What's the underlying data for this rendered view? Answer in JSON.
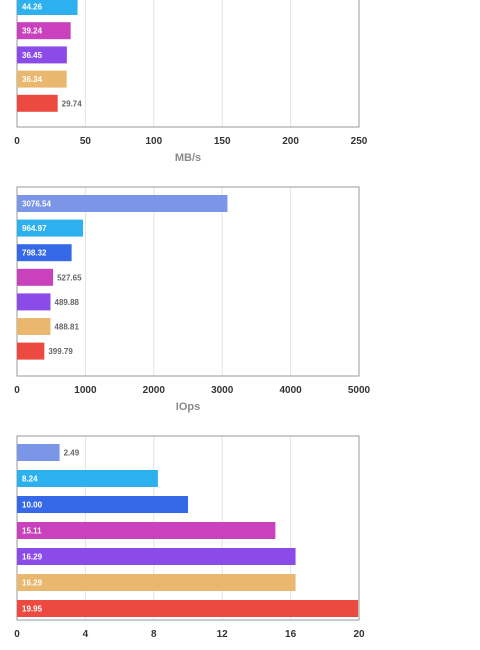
{
  "colors": [
    "#7b96e6",
    "#2db1ee",
    "#3569e8",
    "#c941bd",
    "#8a4be8",
    "#e9b86e",
    "#ec4a41"
  ],
  "chart_data": [
    {
      "type": "bar",
      "orientation": "horizontal",
      "title": "",
      "xlabel": "MB/s",
      "ylabel": "",
      "xlim": [
        0,
        250
      ],
      "xticks": [
        0,
        50,
        100,
        150,
        200,
        250
      ],
      "grid": true,
      "values": [
        44.26,
        39.24,
        36.45,
        36.34,
        29.74
      ],
      "labels": [
        "44.26",
        "39.24",
        "36.45",
        "36.34",
        "29.74"
      ],
      "colors": [
        "#2db1ee",
        "#c941bd",
        "#8a4be8",
        "#e9b86e",
        "#ec4a41"
      ]
    },
    {
      "type": "bar",
      "orientation": "horizontal",
      "title": "",
      "xlabel": "IOps",
      "ylabel": "",
      "xlim": [
        0,
        5000
      ],
      "xticks": [
        0,
        1000,
        2000,
        3000,
        4000,
        5000
      ],
      "grid": true,
      "values": [
        3076.54,
        964.97,
        798.32,
        527.65,
        489.88,
        488.81,
        399.79
      ],
      "labels": [
        "3076.54",
        "964.97",
        "798.32",
        "527.65",
        "489.88",
        "488.81",
        "399.79"
      ],
      "colors": [
        "#7b96e6",
        "#2db1ee",
        "#3569e8",
        "#c941bd",
        "#8a4be8",
        "#e9b86e",
        "#ec4a41"
      ]
    },
    {
      "type": "bar",
      "orientation": "horizontal",
      "title": "",
      "xlabel": "",
      "ylabel": "",
      "xlim": [
        0,
        20
      ],
      "xticks": [
        0,
        4,
        8,
        12,
        16,
        20
      ],
      "grid": true,
      "values": [
        2.49,
        8.24,
        10.0,
        15.11,
        16.29,
        16.29,
        19.95
      ],
      "labels": [
        "2.49",
        "8.24",
        "10.00",
        "15.11",
        "16.29",
        "16.29",
        "19.95"
      ],
      "colors": [
        "#7b96e6",
        "#2db1ee",
        "#3569e8",
        "#c941bd",
        "#8a4be8",
        "#e9b86e",
        "#ec4a41"
      ]
    }
  ]
}
